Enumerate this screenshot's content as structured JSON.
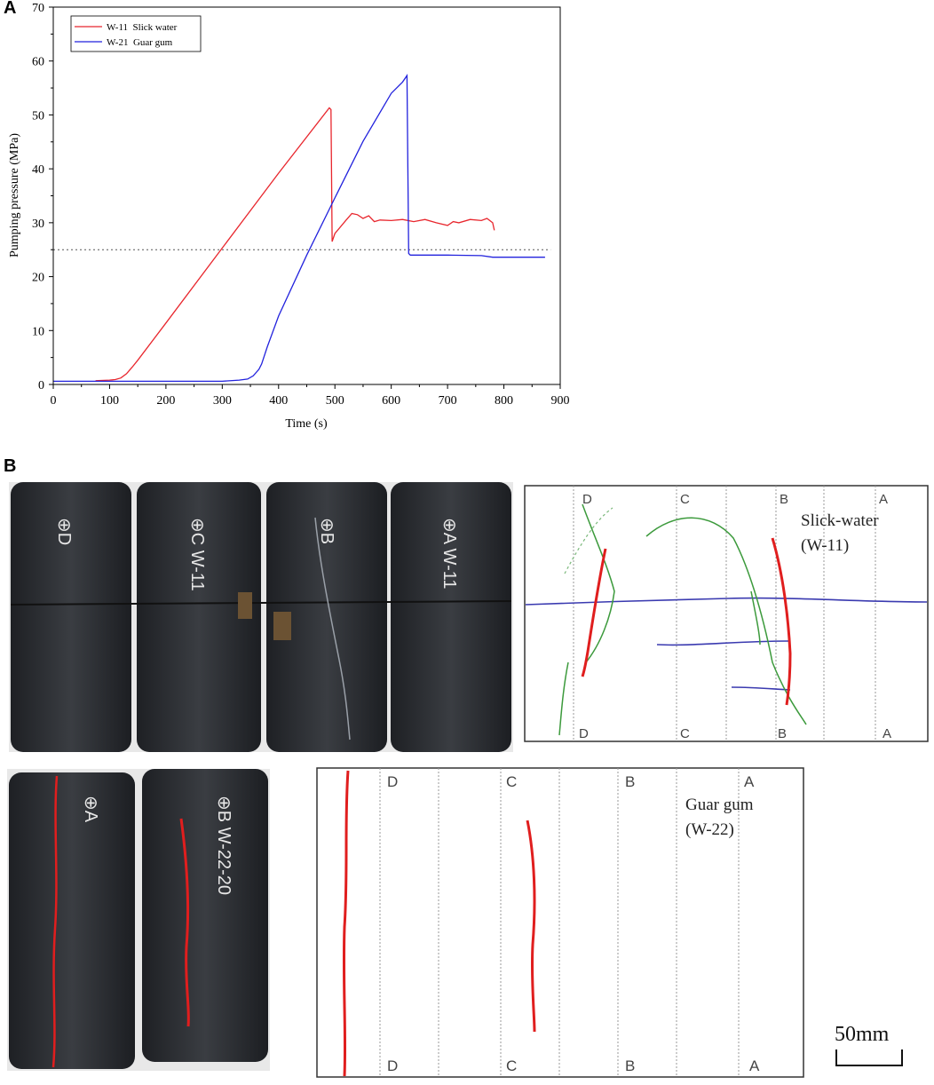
{
  "panels": {
    "a_label": "A",
    "b_label": "B"
  },
  "chart_data": {
    "type": "line",
    "xlabel": "Time (s)",
    "ylabel": "Pumping pressure (MPa)",
    "xlim": [
      0,
      900
    ],
    "ylim": [
      0,
      70
    ],
    "xticks": [
      "0",
      "100",
      "200",
      "300",
      "400",
      "500",
      "600",
      "700",
      "800",
      "900"
    ],
    "yticks": [
      "0",
      "10",
      "20",
      "30",
      "40",
      "50",
      "60",
      "70"
    ],
    "legend_position": "top-left",
    "reference_line": {
      "y": 25,
      "style": "dotted"
    },
    "series": [
      {
        "name": "W-11  Slick water",
        "color": "#e8262d",
        "x": [
          75,
          100,
          110,
          120,
          130,
          140,
          150,
          200,
          300,
          400,
          490,
          493,
          495,
          500,
          520,
          530,
          540,
          550,
          560,
          570,
          580,
          600,
          620,
          640,
          660,
          680,
          700,
          710,
          720,
          740,
          760,
          770,
          780,
          783
        ],
        "y": [
          0.7,
          0.8,
          0.9,
          1.2,
          2.0,
          3.2,
          4.5,
          11.4,
          25.3,
          39.2,
          51.3,
          51.0,
          26.5,
          28.0,
          30.5,
          31.7,
          31.5,
          30.8,
          31.3,
          30.2,
          30.5,
          30.4,
          30.6,
          30.2,
          30.6,
          30.0,
          29.5,
          30.2,
          30.0,
          30.6,
          30.4,
          30.8,
          30.0,
          28.6
        ]
      },
      {
        "name": "W-21  Guar gum",
        "color": "#2222dd",
        "x": [
          0,
          50,
          100,
          150,
          200,
          250,
          300,
          330,
          345,
          355,
          365,
          370,
          380,
          400,
          450,
          500,
          550,
          600,
          620,
          628,
          631,
          634,
          640,
          700,
          760,
          780,
          800,
          840,
          873
        ],
        "y": [
          0.6,
          0.6,
          0.6,
          0.6,
          0.6,
          0.6,
          0.6,
          0.8,
          1.0,
          1.6,
          2.8,
          3.8,
          7.0,
          12.7,
          24.0,
          34.6,
          45.1,
          54.0,
          56.1,
          57.3,
          24.3,
          24.0,
          24.0,
          24.0,
          23.9,
          23.6,
          23.6,
          23.6,
          23.6
        ]
      }
    ]
  },
  "specimen_w11": {
    "photo_labels": [
      "⊕D",
      "⊕C W-11",
      "⊕B",
      "⊕A W-11"
    ],
    "sketch": {
      "title_line1": "Slick-water",
      "title_line2": "(W-11)",
      "top_markers": [
        "D",
        "C",
        "B",
        "A"
      ],
      "bottom_markers": [
        "D",
        "C",
        "B",
        "A"
      ]
    }
  },
  "specimen_w22": {
    "photo_labels": [
      "⊕A",
      "⊕B W-22-20"
    ],
    "sketch": {
      "title_line1": "Guar gum",
      "title_line2": "(W-22)",
      "top_markers": [
        "D",
        "C",
        "B",
        "A"
      ],
      "bottom_markers": [
        "D",
        "C",
        "B",
        "A"
      ]
    }
  },
  "scale_bar": {
    "label": "50mm"
  },
  "colors": {
    "fracture_red": "#e01e1e",
    "fracture_green": "#3c9a3c",
    "fracture_blue": "#3a3ab0",
    "rock_dark": "#2e3034"
  }
}
